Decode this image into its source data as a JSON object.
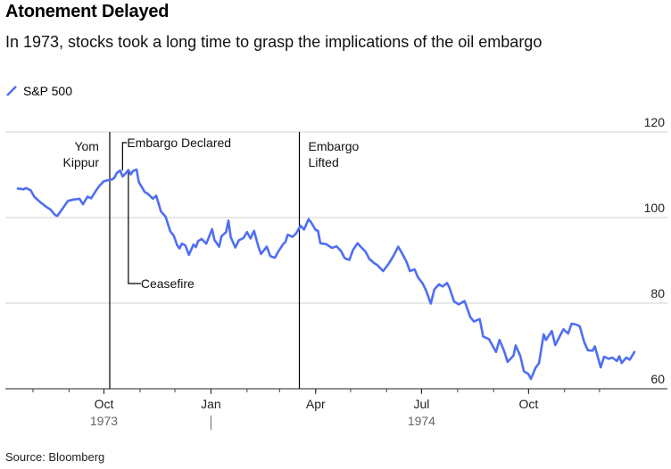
{
  "title": "Atonement Delayed",
  "subtitle": "In 1973, stocks took a long time to grasp the implications of the oil embargo",
  "source": "Source: Bloomberg",
  "colors": {
    "series": "#4f6ef2",
    "grid": "#d0d0d0",
    "event_line": "#000000"
  },
  "chart_data": {
    "type": "line",
    "x_type": "date",
    "xlim": [
      "1973-07-19",
      "1974-12-31"
    ],
    "ylim": [
      60,
      120
    ],
    "yticks": [
      60,
      80,
      100,
      120
    ],
    "grid": true,
    "y_axis_side": "right",
    "legend_position": "top-left",
    "xticks": [
      {
        "date": "1973-10-01",
        "label": "Oct"
      },
      {
        "date": "1974-01-01",
        "label": "Jan"
      },
      {
        "date": "1974-04-01",
        "label": "Apr"
      },
      {
        "date": "1974-07-01",
        "label": "Jul"
      },
      {
        "date": "1974-10-01",
        "label": "Oct"
      }
    ],
    "year_labels": [
      {
        "date": "1973-10-01",
        "label": "1973"
      },
      {
        "date": "1974-07-01",
        "label": "1974"
      }
    ],
    "year_separator": "1974-01-01",
    "series": [
      {
        "name": "S&P 500",
        "points": [
          [
            "1973-07-19",
            106.8
          ],
          [
            "1973-07-24",
            106.6
          ],
          [
            "1973-07-26",
            106.9
          ],
          [
            "1973-07-30",
            106.4
          ],
          [
            "1973-08-02",
            104.9
          ],
          [
            "1973-08-06",
            103.9
          ],
          [
            "1973-08-09",
            103.2
          ],
          [
            "1973-08-13",
            102.4
          ],
          [
            "1973-08-16",
            101.9
          ],
          [
            "1973-08-20",
            100.6
          ],
          [
            "1973-08-22",
            100.4
          ],
          [
            "1973-08-27",
            102.3
          ],
          [
            "1973-08-31",
            103.9
          ],
          [
            "1973-09-05",
            104.2
          ],
          [
            "1973-09-10",
            104.4
          ],
          [
            "1973-09-13",
            103.1
          ],
          [
            "1973-09-17",
            104.9
          ],
          [
            "1973-09-20",
            104.5
          ],
          [
            "1973-09-24",
            106.2
          ],
          [
            "1973-09-27",
            107.4
          ],
          [
            "1973-10-01",
            108.5
          ],
          [
            "1973-10-04",
            108.7
          ],
          [
            "1973-10-08",
            108.9
          ],
          [
            "1973-10-10",
            109.3
          ],
          [
            "1973-10-12",
            110.4
          ],
          [
            "1973-10-15",
            111.0
          ],
          [
            "1973-10-17",
            109.6
          ],
          [
            "1973-10-19",
            110.1
          ],
          [
            "1973-10-22",
            111.1
          ],
          [
            "1973-10-24",
            110.1
          ],
          [
            "1973-10-26",
            110.9
          ],
          [
            "1973-10-29",
            111.2
          ],
          [
            "1973-10-31",
            108.3
          ],
          [
            "1973-11-05",
            106.0
          ],
          [
            "1973-11-08",
            105.5
          ],
          [
            "1973-11-12",
            104.4
          ],
          [
            "1973-11-15",
            105.1
          ],
          [
            "1973-11-19",
            101.4
          ],
          [
            "1973-11-23",
            100.2
          ],
          [
            "1973-11-27",
            96.8
          ],
          [
            "1973-11-30",
            95.8
          ],
          [
            "1973-12-03",
            93.5
          ],
          [
            "1973-12-05",
            92.8
          ],
          [
            "1973-12-07",
            93.9
          ],
          [
            "1973-12-10",
            93.5
          ],
          [
            "1973-12-13",
            91.3
          ],
          [
            "1973-12-17",
            93.7
          ],
          [
            "1973-12-19",
            93.1
          ],
          [
            "1973-12-21",
            94.5
          ],
          [
            "1973-12-24",
            95.0
          ],
          [
            "1973-12-28",
            93.9
          ],
          [
            "1974-01-02",
            97.3
          ],
          [
            "1974-01-04",
            94.8
          ],
          [
            "1974-01-08",
            93.2
          ],
          [
            "1974-01-10",
            95.6
          ],
          [
            "1974-01-14",
            96.6
          ],
          [
            "1974-01-16",
            99.3
          ],
          [
            "1974-01-18",
            95.4
          ],
          [
            "1974-01-22",
            93.0
          ],
          [
            "1974-01-25",
            94.7
          ],
          [
            "1974-01-29",
            95.2
          ],
          [
            "1974-02-01",
            96.6
          ],
          [
            "1974-02-04",
            95.1
          ],
          [
            "1974-02-07",
            96.9
          ],
          [
            "1974-02-11",
            93.0
          ],
          [
            "1974-02-13",
            91.5
          ],
          [
            "1974-02-18",
            93.2
          ],
          [
            "1974-02-21",
            91.0
          ],
          [
            "1974-02-25",
            90.6
          ],
          [
            "1974-02-28",
            92.1
          ],
          [
            "1974-03-04",
            93.8
          ],
          [
            "1974-03-06",
            94.3
          ],
          [
            "1974-03-08",
            96.0
          ],
          [
            "1974-03-12",
            95.5
          ],
          [
            "1974-03-15",
            96.2
          ],
          [
            "1974-03-19",
            98.1
          ],
          [
            "1974-03-22",
            97.2
          ],
          [
            "1974-03-26",
            99.6
          ],
          [
            "1974-03-28",
            98.9
          ],
          [
            "1974-04-01",
            97.1
          ],
          [
            "1974-04-03",
            96.9
          ],
          [
            "1974-04-05",
            94.0
          ],
          [
            "1974-04-10",
            93.8
          ],
          [
            "1974-04-15",
            92.9
          ],
          [
            "1974-04-19",
            93.3
          ],
          [
            "1974-04-23",
            92.1
          ],
          [
            "1974-04-26",
            90.5
          ],
          [
            "1974-04-30",
            90.1
          ],
          [
            "1974-05-03",
            92.4
          ],
          [
            "1974-05-07",
            94.0
          ],
          [
            "1974-05-10",
            93.1
          ],
          [
            "1974-05-14",
            92.0
          ],
          [
            "1974-05-17",
            90.4
          ],
          [
            "1974-05-21",
            89.4
          ],
          [
            "1974-05-24",
            88.9
          ],
          [
            "1974-05-29",
            87.5
          ],
          [
            "1974-06-03",
            89.3
          ],
          [
            "1974-06-07",
            91.1
          ],
          [
            "1974-06-11",
            93.2
          ],
          [
            "1974-06-14",
            91.8
          ],
          [
            "1974-06-18",
            89.7
          ],
          [
            "1974-06-21",
            87.5
          ],
          [
            "1974-06-25",
            87.9
          ],
          [
            "1974-06-28",
            86.0
          ],
          [
            "1974-07-02",
            84.6
          ],
          [
            "1974-07-05",
            82.9
          ],
          [
            "1974-07-09",
            79.9
          ],
          [
            "1974-07-12",
            83.2
          ],
          [
            "1974-07-16",
            84.4
          ],
          [
            "1974-07-19",
            83.9
          ],
          [
            "1974-07-23",
            84.7
          ],
          [
            "1974-07-25",
            83.6
          ],
          [
            "1974-07-29",
            80.4
          ],
          [
            "1974-08-02",
            79.7
          ],
          [
            "1974-08-07",
            80.5
          ],
          [
            "1974-08-12",
            76.7
          ],
          [
            "1974-08-15",
            75.7
          ],
          [
            "1974-08-20",
            76.3
          ],
          [
            "1974-08-23",
            72.2
          ],
          [
            "1974-08-28",
            71.6
          ],
          [
            "1974-09-03",
            68.6
          ],
          [
            "1974-09-06",
            71.4
          ],
          [
            "1974-09-10",
            68.8
          ],
          [
            "1974-09-13",
            66.3
          ],
          [
            "1974-09-18",
            67.7
          ],
          [
            "1974-09-20",
            70.1
          ],
          [
            "1974-09-24",
            67.6
          ],
          [
            "1974-09-27",
            64.1
          ],
          [
            "1974-10-01",
            63.4
          ],
          [
            "1974-10-03",
            62.3
          ],
          [
            "1974-10-07",
            64.9
          ],
          [
            "1974-10-10",
            66.0
          ],
          [
            "1974-10-14",
            72.7
          ],
          [
            "1974-10-16",
            71.4
          ],
          [
            "1974-10-21",
            73.5
          ],
          [
            "1974-10-24",
            70.2
          ],
          [
            "1974-10-28",
            72.4
          ],
          [
            "1974-10-31",
            73.9
          ],
          [
            "1974-11-04",
            72.9
          ],
          [
            "1974-11-07",
            75.2
          ],
          [
            "1974-11-11",
            75.0
          ],
          [
            "1974-11-14",
            74.6
          ],
          [
            "1974-11-18",
            70.8
          ],
          [
            "1974-11-21",
            69.0
          ],
          [
            "1974-11-25",
            68.9
          ],
          [
            "1974-11-27",
            69.9
          ],
          [
            "1974-12-02",
            65.0
          ],
          [
            "1974-12-05",
            67.5
          ],
          [
            "1974-12-09",
            67.0
          ],
          [
            "1974-12-12",
            67.3
          ],
          [
            "1974-12-16",
            66.5
          ],
          [
            "1974-12-18",
            67.6
          ],
          [
            "1974-12-20",
            66.0
          ],
          [
            "1974-12-24",
            67.3
          ],
          [
            "1974-12-27",
            66.8
          ],
          [
            "1974-12-31",
            68.6
          ]
        ]
      }
    ],
    "events": [
      {
        "date": "1973-10-06",
        "label": "Yom\nKippur",
        "kind": "full_line",
        "label_side": "left"
      },
      {
        "date": "1973-10-17",
        "label": "Embargo Declared",
        "kind": "callout_above"
      },
      {
        "date": "1973-10-22",
        "label": "Ceasefire",
        "kind": "callout_below"
      },
      {
        "date": "1974-03-18",
        "label": "Embargo\nLifted",
        "kind": "full_line",
        "label_side": "right"
      }
    ]
  }
}
